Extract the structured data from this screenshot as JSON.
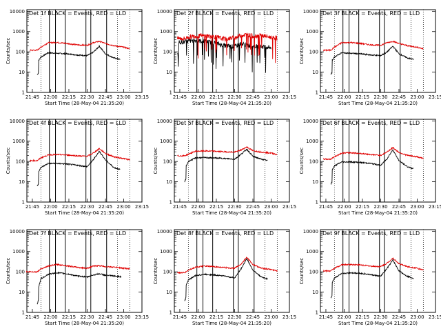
{
  "figure": {
    "xlabel": "Start Time (28-May-04 21:35:20)",
    "ylabel": "Counts/sec"
  },
  "chart_data": [
    {
      "type": "line",
      "title": "Det 1f BLACK = Events, RED = LLD",
      "xlabel": "Start Time (28-May-04 21:35:20)",
      "ylabel": "Counts/sec",
      "x_ticks": [
        "21:45",
        "22:00",
        "22:15",
        "22:30",
        "22:45",
        "23:00",
        "23:15"
      ],
      "y_ticks": [
        "1",
        "10",
        "100",
        "1000",
        "10000"
      ],
      "yscale": "log",
      "ylim": [
        1,
        12000
      ],
      "x": [
        "21:49",
        "21:52",
        "21:58",
        "22:05",
        "22:13",
        "22:22",
        "22:30",
        "22:35",
        "22:40",
        "22:45",
        "22:52",
        "23:00",
        "23:05"
      ],
      "series": [
        {
          "name": "BLACK = Events",
          "color": "#000000",
          "start": "21:49",
          "end": "22:57",
          "values": [
            30,
            55,
            90,
            85,
            80,
            70,
            65,
            95,
            190,
            80,
            50,
            38,
            36
          ]
        },
        {
          "name": "RED = LLD",
          "color": "#e00000",
          "start": "21:43",
          "end": "23:05",
          "values": [
            120,
            170,
            280,
            290,
            260,
            220,
            210,
            280,
            330,
            260,
            200,
            170,
            140
          ]
        }
      ]
    },
    {
      "type": "line",
      "title": "Det 2f BLACK = Events, RED = LLD",
      "xlabel": "Start Time (28-May-04 21:35:20)",
      "ylabel": "Counts/sec",
      "x_ticks": [
        "21:45",
        "22:00",
        "22:15",
        "22:30",
        "22:45",
        "23:00",
        "23:15"
      ],
      "y_ticks": [
        "1",
        "10",
        "100",
        "1000",
        "10000"
      ],
      "yscale": "log",
      "ylim": [
        1,
        12000
      ],
      "x": [
        "21:49",
        "21:52",
        "21:58",
        "22:05",
        "22:13",
        "22:22",
        "22:30",
        "22:35",
        "22:40",
        "22:45",
        "22:52",
        "23:00",
        "23:05"
      ],
      "series": [
        {
          "name": "BLACK = Events",
          "color": "#000000",
          "start": "21:43",
          "end": "23:00",
          "values": [
            300,
            340,
            360,
            330,
            280,
            200,
            180,
            250,
            220,
            190,
            180,
            170,
            150
          ]
        },
        {
          "name": "RED = LLD",
          "color": "#e00000",
          "start": "21:43",
          "end": "23:05",
          "values": [
            450,
            520,
            600,
            620,
            560,
            420,
            500,
            650,
            700,
            600,
            650,
            520,
            480
          ]
        }
      ]
    },
    {
      "type": "line",
      "title": "Det 3f BLACK = Events, RED = LLD",
      "xlabel": "Start Time (28-May-04 21:35:20)",
      "ylabel": "Counts/sec",
      "x_ticks": [
        "21:45",
        "22:00",
        "22:15",
        "22:30",
        "22:45",
        "23:00",
        "23:15"
      ],
      "y_ticks": [
        "1",
        "10",
        "100",
        "1000",
        "10000"
      ],
      "yscale": "log",
      "ylim": [
        1,
        12000
      ],
      "x": [
        "21:49",
        "21:52",
        "21:58",
        "22:05",
        "22:13",
        "22:22",
        "22:30",
        "22:35",
        "22:40",
        "22:45",
        "22:52",
        "23:00",
        "23:05"
      ],
      "series": [
        {
          "name": "BLACK = Events",
          "color": "#000000",
          "start": "21:49",
          "end": "22:57",
          "values": [
            30,
            55,
            90,
            85,
            80,
            70,
            65,
            95,
            190,
            80,
            50,
            38,
            36
          ]
        },
        {
          "name": "RED = LLD",
          "color": "#e00000",
          "start": "21:43",
          "end": "23:05",
          "values": [
            120,
            170,
            280,
            290,
            260,
            220,
            210,
            280,
            330,
            260,
            200,
            170,
            140
          ]
        }
      ]
    },
    {
      "type": "line",
      "title": "Det 4f BLACK = Events, RED = LLD",
      "xlabel": "Start Time (28-May-04 21:35:20)",
      "ylabel": "Counts/sec",
      "x_ticks": [
        "21:45",
        "22:00",
        "22:15",
        "22:30",
        "22:45",
        "23:00",
        "23:15"
      ],
      "y_ticks": [
        "1",
        "10",
        "100",
        "1000",
        "10000"
      ],
      "yscale": "log",
      "ylim": [
        1,
        12000
      ],
      "x": [
        "21:49",
        "21:52",
        "21:58",
        "22:05",
        "22:13",
        "22:22",
        "22:30",
        "22:35",
        "22:40",
        "22:45",
        "22:52",
        "23:00",
        "23:05"
      ],
      "series": [
        {
          "name": "BLACK = Events",
          "color": "#000000",
          "start": "21:49",
          "end": "22:57",
          "values": [
            25,
            50,
            80,
            80,
            75,
            65,
            55,
            120,
            320,
            120,
            50,
            35,
            30
          ]
        },
        {
          "name": "RED = LLD",
          "color": "#e00000",
          "start": "21:43",
          "end": "23:05",
          "values": [
            110,
            150,
            210,
            220,
            210,
            190,
            180,
            260,
            430,
            250,
            170,
            140,
            120
          ]
        }
      ]
    },
    {
      "type": "line",
      "title": "Det 5f BLACK = Events, RED = LLD",
      "xlabel": "Start Time (28-May-04 21:35:20)",
      "ylabel": "Counts/sec",
      "x_ticks": [
        "21:45",
        "22:00",
        "22:15",
        "22:30",
        "22:45",
        "23:00",
        "23:15"
      ],
      "y_ticks": [
        "1",
        "10",
        "100",
        "1000",
        "10000"
      ],
      "yscale": "log",
      "ylim": [
        1,
        12000
      ],
      "x": [
        "21:49",
        "21:52",
        "21:58",
        "22:05",
        "22:13",
        "22:22",
        "22:30",
        "22:35",
        "22:40",
        "22:45",
        "22:52",
        "23:00",
        "23:05"
      ],
      "series": [
        {
          "name": "BLACK = Events",
          "color": "#000000",
          "start": "21:49",
          "end": "22:57",
          "values": [
            40,
            100,
            150,
            155,
            150,
            140,
            130,
            220,
            400,
            180,
            130,
            100,
            85
          ]
        },
        {
          "name": "RED = LLD",
          "color": "#e00000",
          "start": "21:43",
          "end": "23:05",
          "values": [
            190,
            230,
            320,
            330,
            320,
            300,
            290,
            360,
            520,
            340,
            290,
            260,
            220
          ]
        }
      ]
    },
    {
      "type": "line",
      "title": "Det 6f BLACK = Events, RED = LLD",
      "xlabel": "Start Time (28-May-04 21:35:20)",
      "ylabel": "Counts/sec",
      "x_ticks": [
        "21:45",
        "22:00",
        "22:15",
        "22:30",
        "22:45",
        "23:00",
        "23:15"
      ],
      "y_ticks": [
        "1",
        "10",
        "100",
        "1000",
        "10000"
      ],
      "yscale": "log",
      "ylim": [
        1,
        12000
      ],
      "x": [
        "21:49",
        "21:52",
        "21:58",
        "22:05",
        "22:13",
        "22:22",
        "22:30",
        "22:35",
        "22:40",
        "22:45",
        "22:52",
        "23:00",
        "23:05"
      ],
      "series": [
        {
          "name": "BLACK = Events",
          "color": "#000000",
          "start": "21:49",
          "end": "22:57",
          "values": [
            30,
            60,
            95,
            95,
            90,
            80,
            65,
            130,
            380,
            110,
            55,
            38,
            32
          ]
        },
        {
          "name": "RED = LLD",
          "color": "#e00000",
          "start": "21:43",
          "end": "23:05",
          "values": [
            130,
            170,
            260,
            270,
            250,
            220,
            200,
            290,
            480,
            280,
            200,
            170,
            140
          ]
        }
      ]
    },
    {
      "type": "line",
      "title": "Det 7f BLACK = Events, RED = LLD",
      "xlabel": "Start Time (28-May-04 21:35:20)",
      "ylabel": "Counts/sec",
      "x_ticks": [
        "21:45",
        "22:00",
        "22:15",
        "22:30",
        "22:45",
        "23:00",
        "23:15"
      ],
      "y_ticks": [
        "1",
        "10",
        "100",
        "1000",
        "10000"
      ],
      "yscale": "log",
      "ylim": [
        1,
        12000
      ],
      "x": [
        "21:49",
        "21:52",
        "21:58",
        "22:05",
        "22:13",
        "22:22",
        "22:30",
        "22:35",
        "22:40",
        "22:45",
        "22:52",
        "23:00",
        "23:05"
      ],
      "series": [
        {
          "name": "BLACK = Events",
          "color": "#000000",
          "start": "21:49",
          "end": "22:58",
          "values": [
            10,
            45,
            75,
            90,
            80,
            62,
            55,
            70,
            80,
            68,
            62,
            55,
            50
          ]
        },
        {
          "name": "RED = LLD",
          "color": "#e00000",
          "start": "21:40",
          "end": "23:05",
          "values": [
            100,
            140,
            190,
            230,
            200,
            165,
            150,
            190,
            200,
            180,
            170,
            150,
            140
          ]
        }
      ]
    },
    {
      "type": "line",
      "title": "Det 8f BLACK = Events, RED = LLD",
      "xlabel": "Start Time (28-May-04 21:35:20)",
      "ylabel": "Counts/sec",
      "x_ticks": [
        "21:45",
        "22:00",
        "22:15",
        "22:30",
        "22:45",
        "23:00",
        "23:15"
      ],
      "y_ticks": [
        "1",
        "10",
        "100",
        "1000",
        "10000"
      ],
      "yscale": "log",
      "ylim": [
        1,
        12000
      ],
      "x": [
        "21:49",
        "21:52",
        "21:58",
        "22:05",
        "22:13",
        "22:22",
        "22:30",
        "22:35",
        "22:40",
        "22:45",
        "22:52",
        "23:00",
        "23:05"
      ],
      "series": [
        {
          "name": "BLACK = Events",
          "color": "#000000",
          "start": "21:49",
          "end": "22:57",
          "values": [
            15,
            40,
            65,
            75,
            70,
            62,
            50,
            130,
            450,
            120,
            55,
            40,
            35
          ]
        },
        {
          "name": "RED = LLD",
          "color": "#e00000",
          "start": "21:43",
          "end": "23:05",
          "values": [
            90,
            120,
            170,
            190,
            180,
            160,
            150,
            230,
            520,
            230,
            150,
            130,
            110
          ]
        }
      ]
    },
    {
      "type": "line",
      "title": "Det 9f BLACK = Events, RED = LLD",
      "xlabel": "Start Time (28-May-04 21:35:20)",
      "ylabel": "Counts/sec",
      "x_ticks": [
        "21:45",
        "22:00",
        "22:15",
        "22:30",
        "22:45",
        "23:00",
        "23:15"
      ],
      "y_ticks": [
        "1",
        "10",
        "100",
        "1000",
        "10000"
      ],
      "yscale": "log",
      "ylim": [
        1,
        12000
      ],
      "x": [
        "21:49",
        "21:52",
        "21:58",
        "22:05",
        "22:13",
        "22:22",
        "22:30",
        "22:35",
        "22:40",
        "22:45",
        "22:52",
        "23:00",
        "23:05"
      ],
      "series": [
        {
          "name": "BLACK = Events",
          "color": "#000000",
          "start": "21:49",
          "end": "22:57",
          "values": [
            20,
            50,
            80,
            90,
            85,
            72,
            60,
            140,
            380,
            110,
            60,
            42,
            35
          ]
        },
        {
          "name": "RED = LLD",
          "color": "#e00000",
          "start": "21:43",
          "end": "23:05",
          "values": [
            110,
            150,
            220,
            230,
            220,
            190,
            180,
            260,
            470,
            250,
            180,
            150,
            120
          ]
        }
      ]
    }
  ]
}
